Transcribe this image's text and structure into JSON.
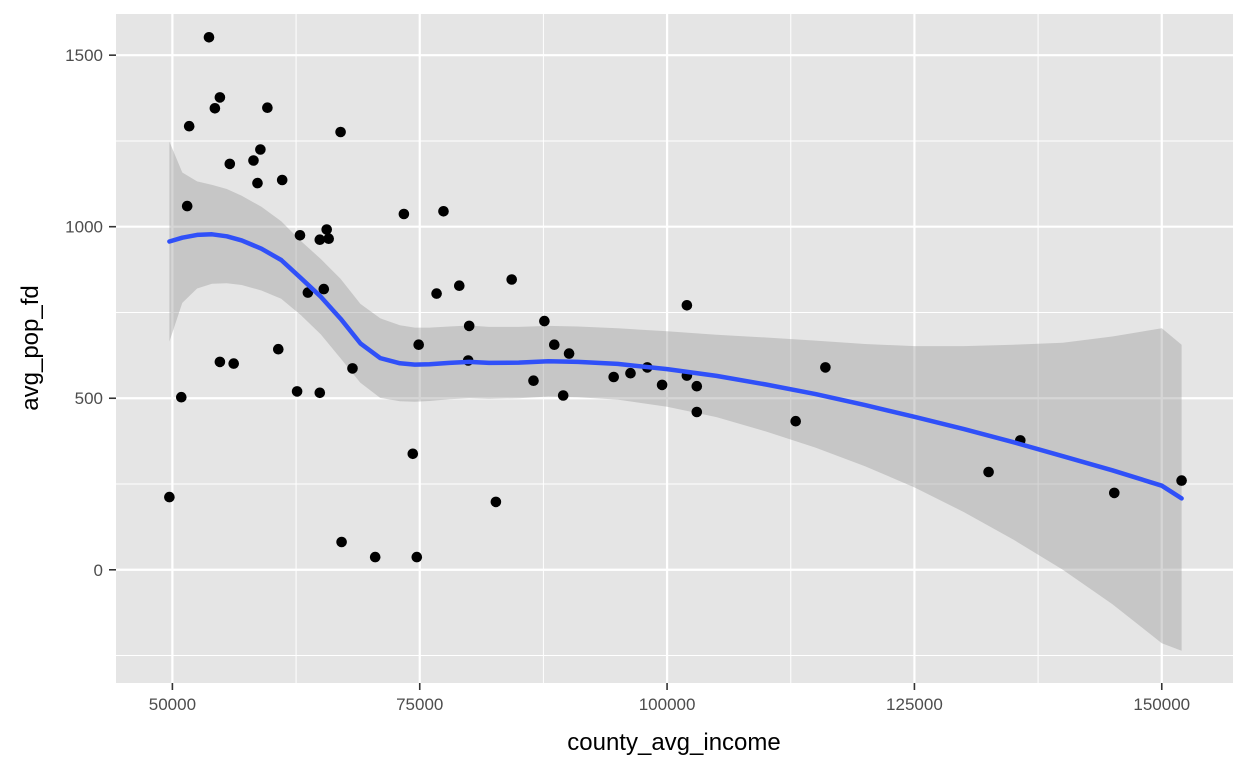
{
  "chart_data": {
    "type": "scatter",
    "title": "",
    "xlabel": "county_avg_income",
    "ylabel": "avg_pop_fd",
    "xlim": [
      44300,
      157200
    ],
    "ylim": [
      -330,
      1620
    ],
    "x_ticks": [
      50000,
      75000,
      100000,
      125000,
      150000
    ],
    "x_tick_labels": [
      "50000",
      "75000",
      "100000",
      "125000",
      "150000"
    ],
    "y_ticks": [
      0,
      500,
      1000,
      1500
    ],
    "y_tick_labels": [
      "0",
      "500",
      "1000",
      "1500"
    ],
    "grid": true,
    "legend": "none",
    "colors": {
      "panel": "#e5e5e5",
      "grid": "#ffffff",
      "points": "#000000",
      "smooth_line": "#3050f8",
      "ribbon": "#999999"
    },
    "points": [
      [
        49700,
        212
      ],
      [
        50900,
        503
      ],
      [
        51500,
        1060
      ],
      [
        51700,
        1293
      ],
      [
        53700,
        1552
      ],
      [
        54300,
        1345
      ],
      [
        54800,
        1377
      ],
      [
        54800,
        606
      ],
      [
        55800,
        1183
      ],
      [
        56200,
        601
      ],
      [
        58200,
        1193
      ],
      [
        58600,
        1127
      ],
      [
        58900,
        1225
      ],
      [
        59600,
        1347
      ],
      [
        60700,
        643
      ],
      [
        61100,
        1136
      ],
      [
        62600,
        520
      ],
      [
        62900,
        975
      ],
      [
        63700,
        808
      ],
      [
        64900,
        516
      ],
      [
        64900,
        962
      ],
      [
        65300,
        818
      ],
      [
        65600,
        992
      ],
      [
        65800,
        965
      ],
      [
        67000,
        1276
      ],
      [
        67100,
        81
      ],
      [
        68200,
        587
      ],
      [
        70500,
        37
      ],
      [
        73400,
        1037
      ],
      [
        74300,
        338
      ],
      [
        74700,
        37
      ],
      [
        74900,
        656
      ],
      [
        76700,
        805
      ],
      [
        77400,
        1045
      ],
      [
        79000,
        828
      ],
      [
        79900,
        610
      ],
      [
        80000,
        711
      ],
      [
        82700,
        198
      ],
      [
        84300,
        846
      ],
      [
        86500,
        551
      ],
      [
        87600,
        725
      ],
      [
        88600,
        656
      ],
      [
        89500,
        508
      ],
      [
        90100,
        630
      ],
      [
        94600,
        562
      ],
      [
        96300,
        573
      ],
      [
        98000,
        590
      ],
      [
        99500,
        539
      ],
      [
        102000,
        771
      ],
      [
        102000,
        566
      ],
      [
        103000,
        535
      ],
      [
        103000,
        460
      ],
      [
        113000,
        433
      ],
      [
        116000,
        590
      ],
      [
        132500,
        285
      ],
      [
        135700,
        377
      ],
      [
        145200,
        224
      ],
      [
        152000,
        260
      ]
    ],
    "smooth": {
      "x": [
        49700,
        51000,
        52500,
        54000,
        55500,
        57000,
        59000,
        61000,
        63000,
        65000,
        67000,
        69000,
        71000,
        73000,
        74500,
        76000,
        78000,
        80000,
        82000,
        85000,
        88000,
        91000,
        95000,
        100000,
        105000,
        110000,
        115000,
        120000,
        125000,
        130000,
        135000,
        140000,
        145000,
        150000,
        152000
      ],
      "y": [
        957,
        968,
        976,
        978,
        972,
        960,
        936,
        903,
        850,
        796,
        732,
        660,
        617,
        602,
        598,
        599,
        603,
        606,
        603,
        604,
        608,
        606,
        600,
        585,
        565,
        540,
        512,
        480,
        446,
        410,
        372,
        331,
        290,
        245,
        208
      ],
      "lower": [
        665,
        778,
        820,
        834,
        835,
        830,
        814,
        790,
        742,
        686,
        616,
        545,
        501,
        491,
        490,
        492,
        497,
        500,
        498,
        500,
        505,
        503,
        496,
        475,
        445,
        403,
        356,
        302,
        240,
        168,
        88,
        0,
        -100,
        -214,
        -236
      ],
      "upper": [
        1248,
        1158,
        1132,
        1122,
        1110,
        1090,
        1058,
        1016,
        958,
        906,
        848,
        775,
        733,
        713,
        706,
        706,
        709,
        712,
        708,
        708,
        711,
        709,
        704,
        695,
        685,
        677,
        668,
        658,
        652,
        652,
        656,
        662,
        680,
        704,
        656
      ]
    }
  }
}
